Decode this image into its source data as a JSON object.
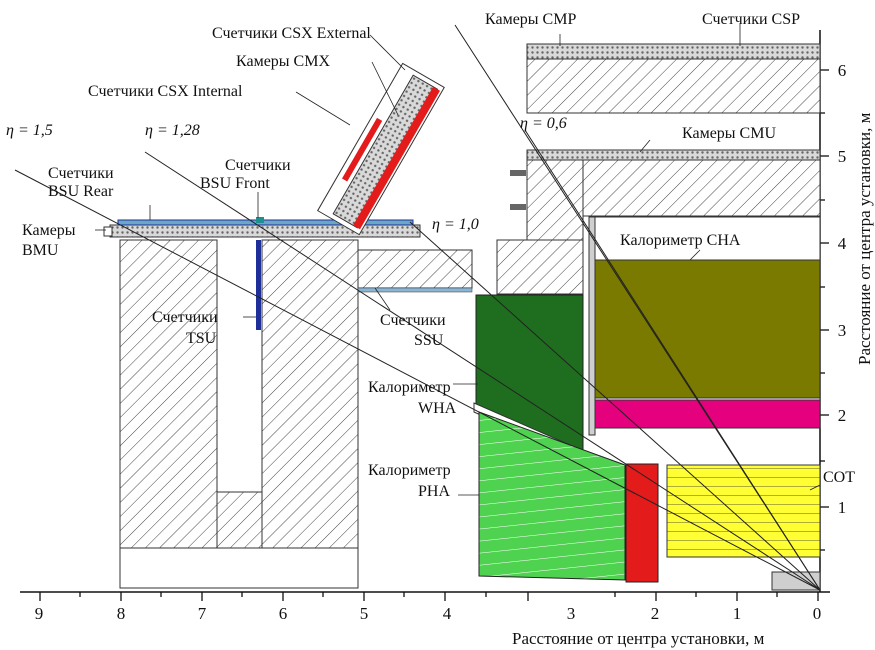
{
  "labels": {
    "csp": "Счетчики CSP",
    "cmp": "Камеры CMP",
    "csx_ext": "Счетчики CSX External",
    "cmx": "Камеры CMX",
    "csx_int": "Счетчики CSX Internal",
    "eta15": "η = 1,5",
    "eta128": "η = 1,28",
    "eta06": "η = 0,6",
    "eta10": "η = 1,0",
    "cmu": "Камеры CMU",
    "bsu_rear_1": "Счетчики",
    "bsu_rear_2": "BSU Rear",
    "bsu_front_1": "Счетчики",
    "bsu_front_2": "BSU Front",
    "bmu_1": "Камеры",
    "bmu_2": "BMU",
    "cha": "Калориметр CHA",
    "tsu_1": "Счетчики",
    "tsu_2": "TSU",
    "ssu_1": "Счетчики",
    "ssu_2": "SSU",
    "wha_1": "Калориметр",
    "wha_2": "WHA",
    "pha_1": "Калориметр",
    "pha_2": "PHA",
    "cot": "COT"
  },
  "axes": {
    "x_title": "Расстояние от центра установки, м",
    "y_title": "Расстояние от центра установки, м",
    "x_ticks": [
      "9",
      "8",
      "7",
      "6",
      "5",
      "4",
      "3",
      "2",
      "1",
      "0"
    ],
    "y_ticks": [
      "1",
      "2",
      "3",
      "4",
      "5",
      "6"
    ]
  },
  "colors": {
    "olive": "#7a7a00",
    "magenta": "#e5007e",
    "dark_green": "#1f6e1f",
    "light_green": "#4fd24f",
    "red": "#e31b1b",
    "yellow": "#ffff33",
    "blue": "#1f2f9a",
    "grey": "#cfcfcf"
  }
}
